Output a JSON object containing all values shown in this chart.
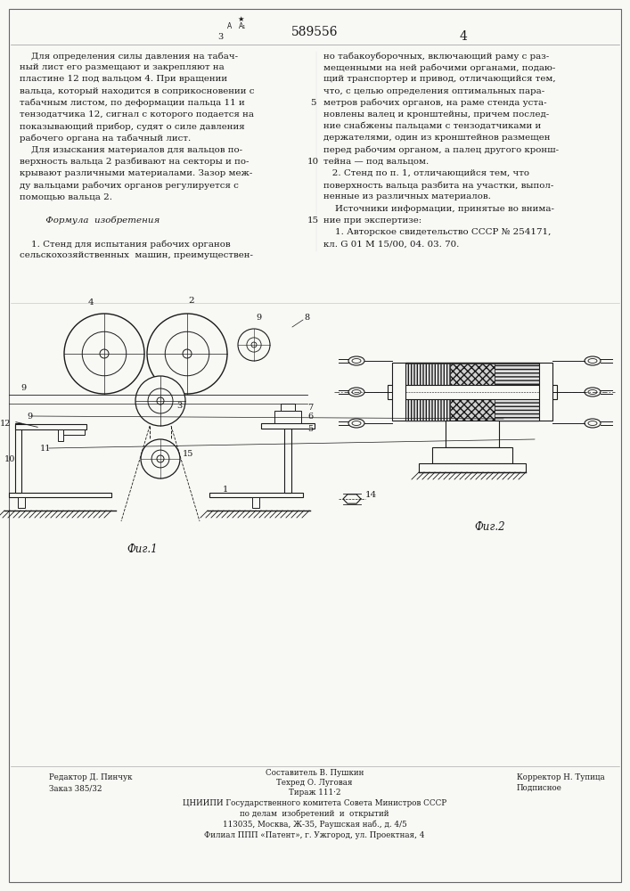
{
  "patent_number": "589556",
  "page_left": "3",
  "page_right": "4",
  "background_color": "#f8f8f5",
  "text_color": "#1a1a1a",
  "left_column_text": [
    [
      "    Для определения силы давления на табач-",
      "normal"
    ],
    [
      "ный лист его размещают и закрепляют на",
      "normal"
    ],
    [
      "пластине 12 под вальцом 4. При вращении",
      "normal"
    ],
    [
      "вальца, который находится в соприкосновении с",
      "normal"
    ],
    [
      "табачным листом, по деформации пальца 11 и",
      "normal"
    ],
    [
      "тензодатчика 12, сигнал с которого подается на",
      "normal"
    ],
    [
      "показывающий прибор, судят о силе давления",
      "normal"
    ],
    [
      "рабочего органа на табачный лист.",
      "normal"
    ],
    [
      "    Для изыскания материалов для вальцов по-",
      "normal"
    ],
    [
      "верхность вальца 2 разбивают на секторы и по-",
      "normal"
    ],
    [
      "крывают различными материалами. Зазор меж-",
      "normal"
    ],
    [
      "ду вальцами рабочих органов регулируется с",
      "normal"
    ],
    [
      "помощью вальца 2.",
      "normal"
    ],
    [
      "",
      "normal"
    ],
    [
      "         Формула  изобретения",
      "italic"
    ],
    [
      "",
      "normal"
    ],
    [
      "    1. Стенд для испытания рабочих органов",
      "normal"
    ],
    [
      "сельскохозяйственных  машин, преимуществен-",
      "normal"
    ]
  ],
  "right_column_text": [
    [
      "но табакоуборочных, включающий раму с раз-",
      "normal"
    ],
    [
      "мещенными на ней рабочими органами, подаю-",
      "normal"
    ],
    [
      "щий транспортер и привод, отличающийся тем,",
      "italic_part"
    ],
    [
      "что, с целью определения оптимальных пара-",
      "normal"
    ],
    [
      "метров рабочих органов, на раме стенда уста-",
      "normal"
    ],
    [
      "новлены валец и кронштейны, причем послед-",
      "normal"
    ],
    [
      "ние снабжены пальцами с тензодатчиками и",
      "normal"
    ],
    [
      "держателями, один из кронштейнов размещен",
      "normal"
    ],
    [
      "перед рабочим органом, а палец другого кронш-",
      "normal"
    ],
    [
      "тейна — под вальцом.",
      "normal"
    ],
    [
      "   2. Стенд по п. 1, отличающийся тем, что",
      "normal"
    ],
    [
      "поверхность вальца разбита на участки, выпол-",
      "normal"
    ],
    [
      "ненные из различных материалов.",
      "normal"
    ],
    [
      "    Источники информации, принятые во внима-",
      "normal"
    ],
    [
      "ние при экспертизе:",
      "normal"
    ],
    [
      "    1. Авторское свидетельство СССР № 254171,",
      "normal"
    ],
    [
      "кл. G 01 M 15/00, 04. 03. 70.",
      "normal"
    ]
  ],
  "fig1_caption": "Фиг.1",
  "fig2_caption": "Фиг.2",
  "footer_editor": "Редактор Д. Пинчук",
  "footer_order": "Заказ 385/32",
  "footer_composer": "Составитель В. Пушкин",
  "footer_tech": "Техред О. Луговая",
  "footer_circulation": "Тираж 111·2",
  "footer_corrector": "Корректор Н. Тупица",
  "footer_signed": "Подписное",
  "footer_org1": "ЦНИИПИ Государственного комитета Совета Министров СССР",
  "footer_org2": "по делам  изобретений  и  открытий",
  "footer_address1": "113035, Москва, Ж-35, Раушская наб., д. 4/5",
  "footer_address2": "Филиал ППП «Патент», г. Ужгород, ул. Проектная, 4"
}
